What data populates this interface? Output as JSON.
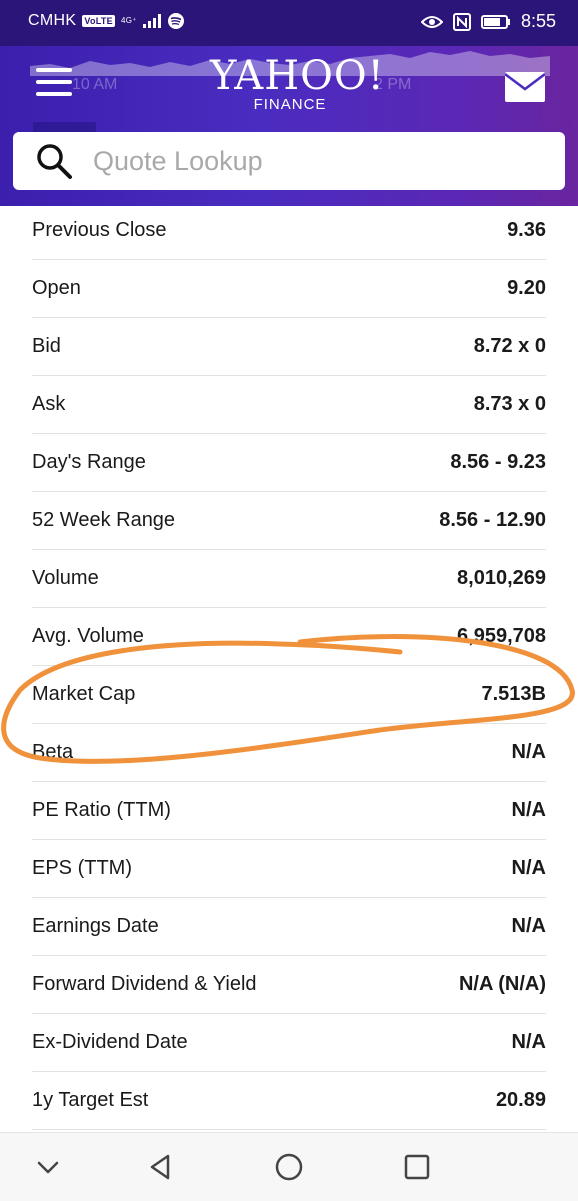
{
  "status_bar": {
    "carrier": "CMHK",
    "volte": "VoLTE",
    "network": "4G⁺",
    "time": "8:55"
  },
  "header": {
    "logo": "YAHOO!",
    "logo_sub": "FINANCE",
    "chart_labels": [
      "10 AM",
      "2 PM"
    ]
  },
  "search": {
    "placeholder": "Quote Lookup"
  },
  "stats": [
    {
      "label": "Previous Close",
      "value": "9.36"
    },
    {
      "label": "Open",
      "value": "9.20"
    },
    {
      "label": "Bid",
      "value": "8.72 x 0"
    },
    {
      "label": "Ask",
      "value": "8.73 x 0"
    },
    {
      "label": "Day's Range",
      "value": "8.56 - 9.23"
    },
    {
      "label": "52 Week Range",
      "value": "8.56 - 12.90"
    },
    {
      "label": "Volume",
      "value": "8,010,269"
    },
    {
      "label": "Avg. Volume",
      "value": "6,959,708"
    },
    {
      "label": "Market Cap",
      "value": "7.513B"
    },
    {
      "label": "Beta",
      "value": "N/A"
    },
    {
      "label": "PE Ratio (TTM)",
      "value": "N/A"
    },
    {
      "label": "EPS (TTM)",
      "value": "N/A"
    },
    {
      "label": "Earnings Date",
      "value": "N/A"
    },
    {
      "label": "Forward Dividend & Yield",
      "value": "N/A (N/A)"
    },
    {
      "label": "Ex-Dividend Date",
      "value": "N/A"
    },
    {
      "label": "1y Target Est",
      "value": "20.89"
    }
  ],
  "colors": {
    "header": "#4a2cc0",
    "status_bar": "#2b1578",
    "annotation": "#f0913c"
  }
}
